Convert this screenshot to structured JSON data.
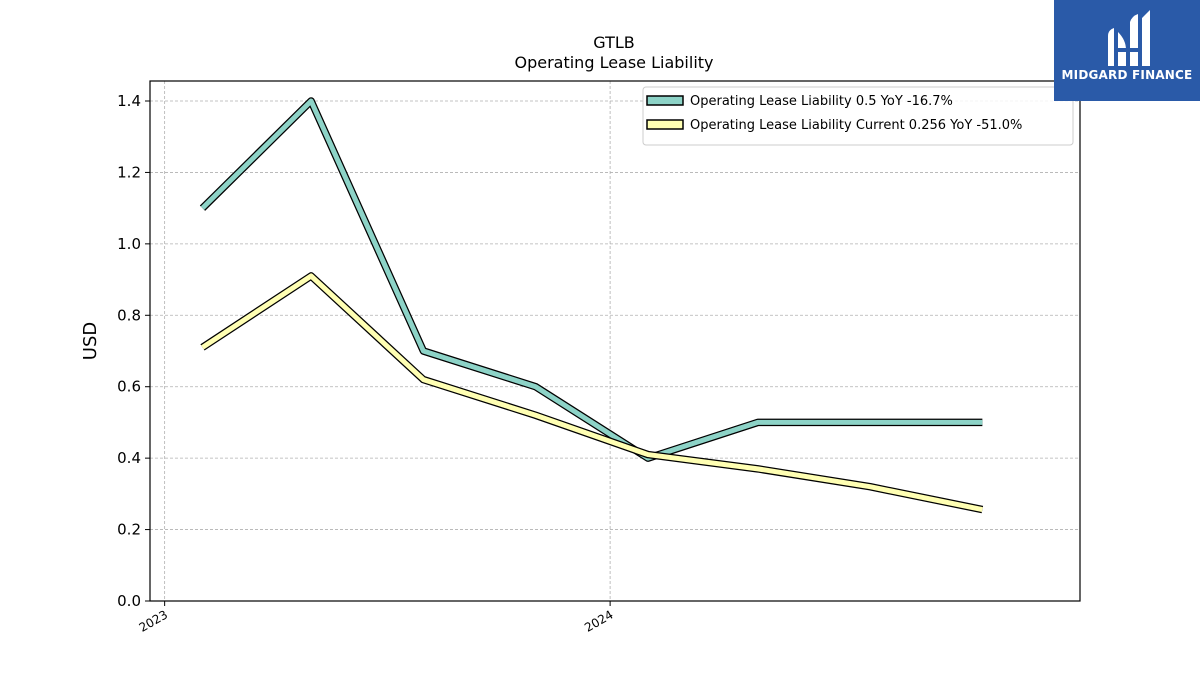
{
  "brand": {
    "name": "MIDGARD FINANCE",
    "background": "#2a5aa8",
    "text_color": "#ffffff"
  },
  "chart_data": {
    "type": "line",
    "title": "GTLB",
    "subtitle": "Operating Lease Liability",
    "xlabel": "",
    "ylabel": "USD",
    "x": [
      "2023-02-01",
      "2023-05-01",
      "2023-08-01",
      "2023-11-01",
      "2024-02-01",
      "2024-05-01",
      "2024-08-01",
      "2024-11-01"
    ],
    "x_ticks": [
      {
        "date": "2023-01-01",
        "label": "2023"
      },
      {
        "date": "2024-01-01",
        "label": "2024"
      }
    ],
    "xlim": [
      "2022-12-20",
      "2025-01-20"
    ],
    "ylim": [
      0,
      1.456
    ],
    "y_ticks": [
      0.0,
      0.2,
      0.4,
      0.6,
      0.8,
      1.0,
      1.2,
      1.4
    ],
    "grid": true,
    "legend_position": "top-right",
    "series": [
      {
        "name": "Operating Lease Liability",
        "legend": "Operating Lease Liability  0.5 YoY -16.7%",
        "color": "#8dd3c7",
        "values": [
          1.1,
          1.4,
          0.7,
          0.6,
          0.4,
          0.5,
          0.5,
          0.5
        ]
      },
      {
        "name": "Operating Lease Liability Current",
        "legend": "Operating Lease Liability Current  0.256 YoY -51.0%",
        "color": "#ffffb3",
        "values": [
          0.71,
          0.91,
          0.62,
          0.52,
          0.41,
          0.37,
          0.32,
          0.256
        ]
      }
    ]
  }
}
